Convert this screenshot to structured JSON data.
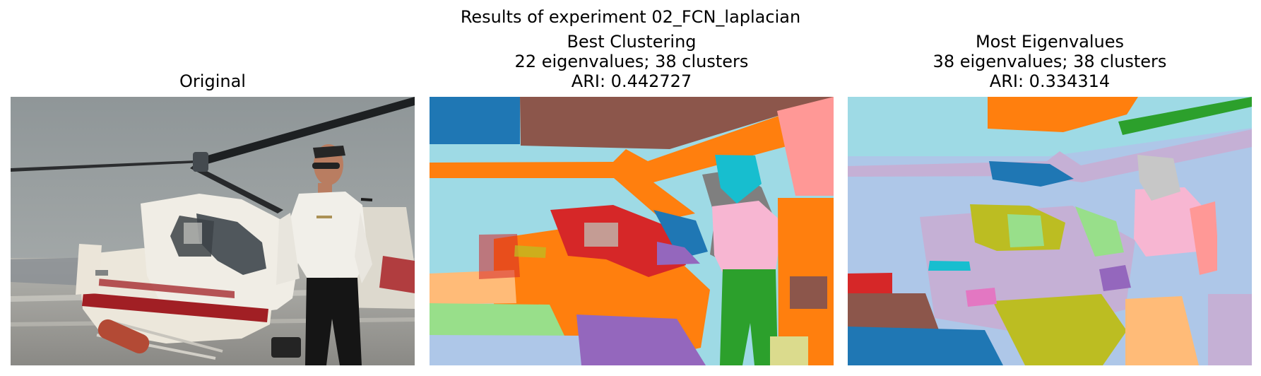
{
  "figure": {
    "suptitle": "Results of experiment 02_FCN_laplacian"
  },
  "panels": [
    {
      "title_lines": [
        "Original"
      ],
      "image": "helicopter-photo",
      "colors": {
        "sky": "#8f9698",
        "ground": "#a4a39f",
        "helicopter_body": "#ece7db",
        "stripe": "#a11f24",
        "shirt": "#f1efe9",
        "pants": "#151515",
        "skin": "#b97d61"
      }
    },
    {
      "title_lines": [
        "Best Clustering",
        "22 eigenvalues; 38 clusters",
        "ARI: 0.442727"
      ],
      "image": "best-clustering-segmentation",
      "colors": {
        "sky_a": "#1f77b4",
        "sky_b": "#9edae5",
        "rotor": "#8c564b",
        "body": "#ff7f0e",
        "detail": "#d62728",
        "shirt": "#f7b6d2",
        "pants": "#2ca02c",
        "gray": "#7f7f7f",
        "ground_a": "#aec7e8",
        "ground_b": "#9467bd",
        "pink": "#ff9896",
        "lime": "#dbdb8d"
      }
    },
    {
      "title_lines": [
        "Most Eigenvalues",
        "38 eigenvalues; 38 clusters",
        "ARI: 0.334314"
      ],
      "image": "most-eigenvalues-segmentation",
      "colors": {
        "sky_a": "#9edae5",
        "sky_b": "#aec7e8",
        "rotor": "#ff7f0e",
        "rotor_edge": "#2ca02c",
        "body": "#c5b0d5",
        "olive": "#bcbd22",
        "green": "#98df8a",
        "pink": "#ff9896",
        "dark_blue": "#1f77b4",
        "red": "#d62728",
        "brown": "#8c564b",
        "peach": "#ffbb78",
        "purple": "#9467bd",
        "cyan": "#17becf",
        "magenta": "#e377c2"
      }
    }
  ]
}
